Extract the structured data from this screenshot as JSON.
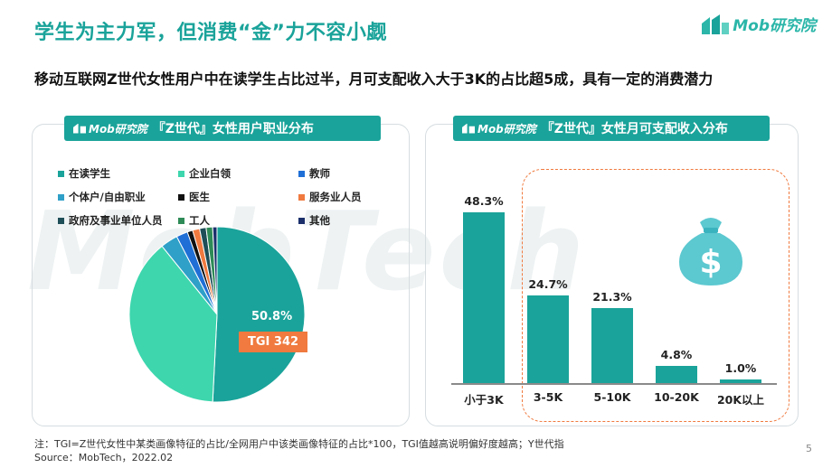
{
  "header": {
    "title": "学生为主力军，但消费“金”力不容小觑",
    "subtitle": "移动互联网Z世代女性用户中在读学生占比过半，月可支配收入大于3K的占比超5成，具有一定的消费潜力",
    "logo_text": "Mob研究院"
  },
  "watermark": "MobTech",
  "colors": {
    "accent": "#1aa39a",
    "light_teal": "#3dd6ad",
    "blue": "#1f6fd6",
    "black": "#111111",
    "orange": "#f07a3f",
    "dark_teal": "#1e4e57",
    "green": "#2e8b57",
    "navy": "#1b2f6b"
  },
  "left_panel": {
    "tab_logo": "Mob研究院",
    "tab_title": "『Z世代』女性用户职业分布",
    "pie_label": "50.8%",
    "tgi_label": "TGI 342"
  },
  "right_panel": {
    "tab_logo": "Mob研究院",
    "tab_title": "『Z世代』女性月可支配收入分布"
  },
  "chart_data": [
    {
      "type": "pie",
      "title": "『Z世代』女性用户职业分布",
      "legend_position": "top",
      "slices": [
        {
          "name": "在读学生",
          "value": 50.8,
          "color": "#1aa39a"
        },
        {
          "name": "企业白领",
          "value": 38.4,
          "color": "#3dd6ad"
        },
        {
          "name": "教师",
          "value": 2.1,
          "color": "#1f6fd6"
        },
        {
          "name": "个体户/自由职业",
          "value": 3.2,
          "color": "#2fa0c8"
        },
        {
          "name": "医生",
          "value": 1.0,
          "color": "#111111"
        },
        {
          "name": "服务业人员",
          "value": 1.3,
          "color": "#f07a3f"
        },
        {
          "name": "政府及事业单位人员",
          "value": 1.2,
          "color": "#1e4e57"
        },
        {
          "name": "工人",
          "value": 1.2,
          "color": "#2e8b57"
        },
        {
          "name": "其他",
          "value": 0.8,
          "color": "#1b2f6b"
        }
      ],
      "legend": [
        {
          "name": "在读学生",
          "color": "#1aa39a"
        },
        {
          "name": "企业白领",
          "color": "#3dd6ad"
        },
        {
          "name": "教师",
          "color": "#1f6fd6"
        },
        {
          "name": "个体户/自由职业",
          "color": "#2fa0c8"
        },
        {
          "name": "医生",
          "color": "#111111"
        },
        {
          "name": "服务业人员",
          "color": "#f07a3f"
        },
        {
          "name": "政府及事业单位人员",
          "color": "#1e4e57"
        },
        {
          "name": "工人",
          "color": "#2e8b57"
        },
        {
          "name": "其他",
          "color": "#1b2f6b"
        }
      ]
    },
    {
      "type": "bar",
      "title": "『Z世代』女性月可支配收入分布",
      "categories": [
        "小于3K",
        "3-5K",
        "5-10K",
        "10-20K",
        "20K以上"
      ],
      "values": [
        48.3,
        24.7,
        21.3,
        4.8,
        1.0
      ],
      "value_labels": [
        "48.3%",
        "24.7%",
        "21.3%",
        "4.8%",
        "1.0%"
      ],
      "ylim": [
        0,
        50
      ]
    }
  ],
  "footnote": {
    "note": "注：TGI=Z世代女性中某类画像特征的占比/全网用户中该类画像特征的占比*100，TGI值越高说明偏好度越高；Y世代指",
    "source": "Source：MobTech，2022.02"
  },
  "page_number": "5"
}
